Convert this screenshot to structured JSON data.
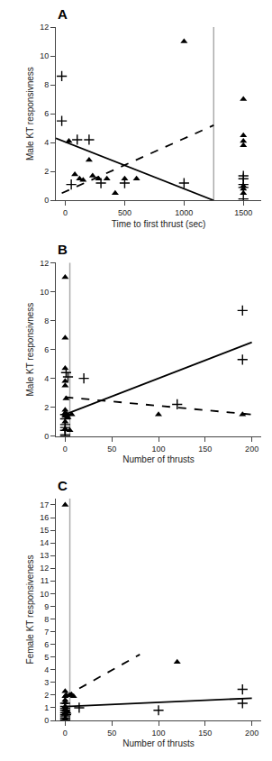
{
  "chart_data": [
    {
      "type": "scatter",
      "title": "A",
      "xlabel": "Time to first thrust (sec)",
      "ylabel": "Male KT responsivness",
      "xlim": [
        -80,
        1650
      ],
      "ylim": [
        0,
        12
      ],
      "xticks": [
        0,
        500,
        1000,
        1500
      ],
      "yticks": [
        0,
        2,
        4,
        6,
        8,
        10,
        12
      ],
      "grid": false,
      "series": [
        {
          "type": "vline",
          "color": "#aaaaaa",
          "x": [
            1250
          ]
        },
        {
          "type": "scatter",
          "marker": "cross",
          "color": "#000000",
          "x": [
            -30,
            -30,
            50,
            100,
            200,
            300,
            500,
            1000,
            1500,
            1500,
            1500,
            1500,
            1500
          ],
          "values": [
            8.6,
            5.5,
            1.1,
            4.2,
            4.2,
            1.2,
            1.2,
            1.2,
            1.1,
            1.5,
            1.7,
            0.9,
            0.1
          ]
        },
        {
          "type": "scatter",
          "marker": "triangle",
          "color": "#000000",
          "x": [
            30,
            80,
            120,
            150,
            200,
            230,
            280,
            350,
            420,
            500,
            600,
            1000,
            1500,
            1500,
            1500,
            1500,
            1500,
            1500,
            1500
          ],
          "values": [
            4.1,
            1.8,
            1.5,
            1.4,
            2.8,
            1.7,
            1.5,
            1.5,
            0.5,
            1.5,
            1.5,
            11.0,
            7.0,
            4.5,
            4.1,
            3.8,
            1.0,
            0.8,
            0.5
          ]
        },
        {
          "type": "line",
          "line_style": "solid",
          "color": "#000000",
          "x": [
            -80,
            1250
          ],
          "values": [
            4.3,
            0.0
          ]
        },
        {
          "type": "line",
          "line_style": "dashed",
          "color": "#000000",
          "x": [
            -30,
            1250
          ],
          "values": [
            0.5,
            5.2
          ]
        }
      ]
    },
    {
      "type": "scatter",
      "title": "B",
      "xlabel": "Number of thrusts",
      "ylabel": "Male KT responsivness",
      "xlim": [
        -10,
        210
      ],
      "ylim": [
        0,
        12
      ],
      "xticks": [
        0,
        50,
        100,
        150,
        200
      ],
      "yticks": [
        0,
        2,
        4,
        6,
        8,
        10,
        12
      ],
      "grid": false,
      "series": [
        {
          "type": "vline",
          "color": "#aaaaaa",
          "x": [
            5
          ]
        },
        {
          "type": "scatter",
          "marker": "cross",
          "color": "#000000",
          "x": [
            0,
            0,
            0,
            0,
            0,
            0,
            0,
            1,
            3,
            20,
            120,
            190,
            190
          ],
          "values": [
            1.5,
            1.2,
            0.8,
            0.6,
            0.4,
            0.1,
            0.0,
            4.4,
            4.1,
            4.0,
            2.2,
            5.3,
            8.7
          ]
        },
        {
          "type": "scatter",
          "marker": "triangle",
          "color": "#000000",
          "x": [
            0,
            0,
            0,
            0,
            0,
            0,
            0,
            0,
            0,
            0,
            0,
            1,
            2,
            3,
            5,
            7,
            100,
            190
          ],
          "values": [
            11.0,
            6.8,
            4.7,
            3.8,
            3.5,
            1.8,
            1.6,
            1.5,
            1.4,
            1.0,
            0.5,
            2.6,
            1.5,
            1.3,
            0.4,
            1.5,
            1.5,
            1.5
          ]
        },
        {
          "type": "line",
          "line_style": "solid",
          "color": "#000000",
          "x": [
            0,
            200
          ],
          "values": [
            1.5,
            6.5
          ]
        },
        {
          "type": "line",
          "line_style": "dashed",
          "color": "#000000",
          "x": [
            0,
            200
          ],
          "values": [
            2.7,
            1.5
          ]
        }
      ]
    },
    {
      "type": "scatter",
      "title": "C",
      "xlabel": "Number of thrusts",
      "ylabel": "Female KT responsiveness",
      "xlim": [
        -10,
        210
      ],
      "ylim": [
        0,
        17.5
      ],
      "xticks": [
        0,
        50,
        100,
        150,
        200
      ],
      "yticks": [
        0,
        1,
        2,
        3,
        4,
        5,
        6,
        7,
        8,
        9,
        10,
        11,
        12,
        13,
        14,
        15,
        16,
        17
      ],
      "grid": false,
      "series": [
        {
          "type": "vline",
          "color": "#aaaaaa",
          "x": [
            5
          ]
        },
        {
          "type": "scatter",
          "marker": "cross",
          "color": "#000000",
          "x": [
            0,
            0,
            0,
            0,
            0,
            0,
            0,
            0,
            0,
            1,
            15,
            100,
            190,
            190
          ],
          "values": [
            1.35,
            1.1,
            0.95,
            0.8,
            0.6,
            0.45,
            0.35,
            0.2,
            0.05,
            0.45,
            1.0,
            0.8,
            1.35,
            2.45
          ]
        },
        {
          "type": "scatter",
          "marker": "triangle",
          "color": "#000000",
          "x": [
            0,
            0,
            0,
            0,
            0,
            0,
            0,
            0,
            0,
            0,
            0,
            1,
            3,
            5,
            7,
            9,
            120
          ],
          "values": [
            2.3,
            1.9,
            1.6,
            1.4,
            1.1,
            0.9,
            0.8,
            0.6,
            0.5,
            0.15,
            0.05,
            2.0,
            0.65,
            2.0,
            2.0,
            1.9,
            4.6
          ]
        },
        {
          "type": "line",
          "line_style": "solid",
          "color": "#000000",
          "x": [
            0,
            200
          ],
          "values": [
            1.1,
            1.75
          ]
        },
        {
          "type": "line",
          "line_style": "dashed",
          "color": "#000000",
          "x": [
            0,
            80
          ],
          "values": [
            1.9,
            5.2
          ]
        },
        {
          "type": "scatter",
          "marker": "triangle",
          "color": "#000000",
          "x": [
            0
          ],
          "values": [
            17.0
          ]
        }
      ]
    }
  ]
}
